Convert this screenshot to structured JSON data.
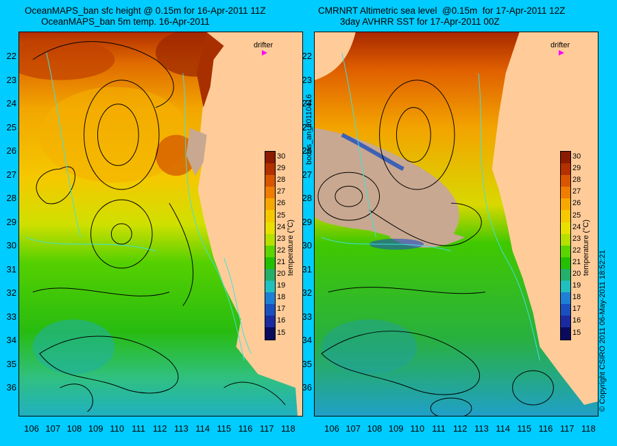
{
  "titles": {
    "left_line1": "OceanMAPS_ban sfc height @ 0.15m for 16-Apr-2011 11Z",
    "left_line2": "OceanMAPS_ban 5m temp. 16-Apr-2011",
    "right_line1": "CMRNRT Altimetric sea level  @0.15m  for 17-Apr-2011 12Z",
    "right_line2": "3day AVHRR SST for 17-Apr-2011 00Z"
  },
  "latitudes": [
    "22",
    "23",
    "24",
    "25",
    "26",
    "27",
    "28",
    "29",
    "30",
    "31",
    "32",
    "33",
    "34",
    "35",
    "36"
  ],
  "longitudes": [
    "106",
    "107",
    "108",
    "109",
    "110",
    "111",
    "112",
    "113",
    "114",
    "115",
    "116",
    "117",
    "118"
  ],
  "colorbar": {
    "ticks": [
      "30",
      "29",
      "28",
      "27",
      "26",
      "25",
      "24",
      "23",
      "22",
      "21",
      "20",
      "19",
      "18",
      "17",
      "16",
      "15"
    ],
    "label": "temperature (°C)",
    "colors": [
      "#8b1a00",
      "#b33000",
      "#d95500",
      "#f07c00",
      "#f7a800",
      "#f5c800",
      "#e8e000",
      "#b5e000",
      "#5cd400",
      "#22c000",
      "#22b06a",
      "#20c0c0",
      "#1e7fd6",
      "#1a4fc0",
      "#1a2aa0",
      "#0a0a5e"
    ]
  },
  "drifter_label": "drifter",
  "side_label": "bodas_an_20110416",
  "copyright": "© Copyright CSIRO 2011  06-May-2011 18:52:21",
  "colors": {
    "background": "#00ccff",
    "land": "#ffcc99",
    "nodata": "#c8a890"
  }
}
